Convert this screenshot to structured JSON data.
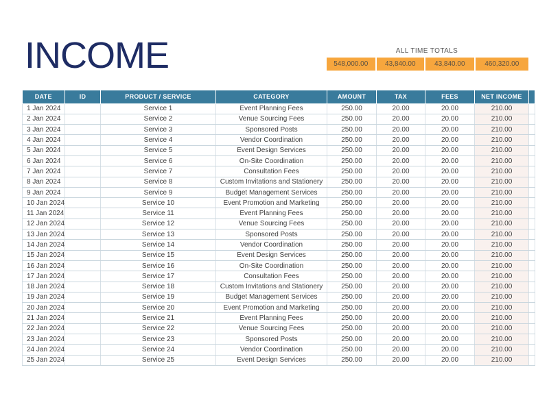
{
  "page": {
    "title": "INCOME"
  },
  "totals": {
    "label": "ALL TIME TOTALS",
    "values": [
      "548,000.00",
      "43,840.00",
      "43,840.00",
      "460,320.00"
    ]
  },
  "table": {
    "columns": [
      "DATE",
      "ID",
      "PRODUCT / SERVICE",
      "CATEGORY",
      "AMOUNT",
      "TAX",
      "FEES",
      "NET INCOME"
    ],
    "rows": [
      {
        "date": "1 Jan 2024",
        "id": "",
        "product": "Service 1",
        "category": "Event Planning Fees",
        "amount": "250.00",
        "tax": "20.00",
        "fees": "20.00",
        "net_income": "210.00"
      },
      {
        "date": "2 Jan 2024",
        "id": "",
        "product": "Service 2",
        "category": "Venue Sourcing Fees",
        "amount": "250.00",
        "tax": "20.00",
        "fees": "20.00",
        "net_income": "210.00"
      },
      {
        "date": "3 Jan 2024",
        "id": "",
        "product": "Service 3",
        "category": "Sponsored Posts",
        "amount": "250.00",
        "tax": "20.00",
        "fees": "20.00",
        "net_income": "210.00"
      },
      {
        "date": "4 Jan 2024",
        "id": "",
        "product": "Service 4",
        "category": "Vendor Coordination",
        "amount": "250.00",
        "tax": "20.00",
        "fees": "20.00",
        "net_income": "210.00"
      },
      {
        "date": "5 Jan 2024",
        "id": "",
        "product": "Service 5",
        "category": "Event Design Services",
        "amount": "250.00",
        "tax": "20.00",
        "fees": "20.00",
        "net_income": "210.00"
      },
      {
        "date": "6 Jan 2024",
        "id": "",
        "product": "Service 6",
        "category": "On-Site Coordination",
        "amount": "250.00",
        "tax": "20.00",
        "fees": "20.00",
        "net_income": "210.00"
      },
      {
        "date": "7 Jan 2024",
        "id": "",
        "product": "Service 7",
        "category": "Consultation Fees",
        "amount": "250.00",
        "tax": "20.00",
        "fees": "20.00",
        "net_income": "210.00"
      },
      {
        "date": "8 Jan 2024",
        "id": "",
        "product": "Service 8",
        "category": "Custom Invitations and Stationery",
        "amount": "250.00",
        "tax": "20.00",
        "fees": "20.00",
        "net_income": "210.00"
      },
      {
        "date": "9 Jan 2024",
        "id": "",
        "product": "Service 9",
        "category": "Budget Management Services",
        "amount": "250.00",
        "tax": "20.00",
        "fees": "20.00",
        "net_income": "210.00"
      },
      {
        "date": "10 Jan 2024",
        "id": "",
        "product": "Service 10",
        "category": "Event Promotion and Marketing",
        "amount": "250.00",
        "tax": "20.00",
        "fees": "20.00",
        "net_income": "210.00"
      },
      {
        "date": "11 Jan 2024",
        "id": "",
        "product": "Service 11",
        "category": "Event Planning Fees",
        "amount": "250.00",
        "tax": "20.00",
        "fees": "20.00",
        "net_income": "210.00"
      },
      {
        "date": "12 Jan 2024",
        "id": "",
        "product": "Service 12",
        "category": "Venue Sourcing Fees",
        "amount": "250.00",
        "tax": "20.00",
        "fees": "20.00",
        "net_income": "210.00"
      },
      {
        "date": "13 Jan 2024",
        "id": "",
        "product": "Service 13",
        "category": "Sponsored Posts",
        "amount": "250.00",
        "tax": "20.00",
        "fees": "20.00",
        "net_income": "210.00"
      },
      {
        "date": "14 Jan 2024",
        "id": "",
        "product": "Service 14",
        "category": "Vendor Coordination",
        "amount": "250.00",
        "tax": "20.00",
        "fees": "20.00",
        "net_income": "210.00"
      },
      {
        "date": "15 Jan 2024",
        "id": "",
        "product": "Service 15",
        "category": "Event Design Services",
        "amount": "250.00",
        "tax": "20.00",
        "fees": "20.00",
        "net_income": "210.00"
      },
      {
        "date": "16 Jan 2024",
        "id": "",
        "product": "Service 16",
        "category": "On-Site Coordination",
        "amount": "250.00",
        "tax": "20.00",
        "fees": "20.00",
        "net_income": "210.00"
      },
      {
        "date": "17 Jan 2024",
        "id": "",
        "product": "Service 17",
        "category": "Consultation Fees",
        "amount": "250.00",
        "tax": "20.00",
        "fees": "20.00",
        "net_income": "210.00"
      },
      {
        "date": "18 Jan 2024",
        "id": "",
        "product": "Service 18",
        "category": "Custom Invitations and Stationery",
        "amount": "250.00",
        "tax": "20.00",
        "fees": "20.00",
        "net_income": "210.00"
      },
      {
        "date": "19 Jan 2024",
        "id": "",
        "product": "Service 19",
        "category": "Budget Management Services",
        "amount": "250.00",
        "tax": "20.00",
        "fees": "20.00",
        "net_income": "210.00"
      },
      {
        "date": "20 Jan 2024",
        "id": "",
        "product": "Service 20",
        "category": "Event Promotion and Marketing",
        "amount": "250.00",
        "tax": "20.00",
        "fees": "20.00",
        "net_income": "210.00"
      },
      {
        "date": "21 Jan 2024",
        "id": "",
        "product": "Service 21",
        "category": "Event Planning Fees",
        "amount": "250.00",
        "tax": "20.00",
        "fees": "20.00",
        "net_income": "210.00"
      },
      {
        "date": "22 Jan 2024",
        "id": "",
        "product": "Service 22",
        "category": "Venue Sourcing Fees",
        "amount": "250.00",
        "tax": "20.00",
        "fees": "20.00",
        "net_income": "210.00"
      },
      {
        "date": "23 Jan 2024",
        "id": "",
        "product": "Service 23",
        "category": "Sponsored Posts",
        "amount": "250.00",
        "tax": "20.00",
        "fees": "20.00",
        "net_income": "210.00"
      },
      {
        "date": "24 Jan 2024",
        "id": "",
        "product": "Service 24",
        "category": "Vendor Coordination",
        "amount": "250.00",
        "tax": "20.00",
        "fees": "20.00",
        "net_income": "210.00"
      },
      {
        "date": "25 Jan 2024",
        "id": "",
        "product": "Service 25",
        "category": "Event Design Services",
        "amount": "250.00",
        "tax": "20.00",
        "fees": "20.00",
        "net_income": "210.00"
      }
    ]
  },
  "colors": {
    "header_bg": "#397b9c",
    "totals_bg": "#f7a63d",
    "net_income_col_bg": "#f9f1ee",
    "title": "#1e2c64"
  }
}
